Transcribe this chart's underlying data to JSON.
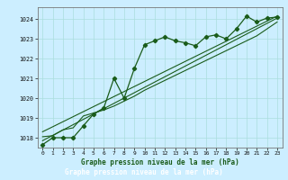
{
  "title": "Graphe pression niveau de la mer (hPa)",
  "bg_color": "#cceeff",
  "grid_color": "#aadddd",
  "line_color": "#1a5c1a",
  "xlim": [
    -0.5,
    23.5
  ],
  "ylim": [
    1017.5,
    1024.6
  ],
  "xticks": [
    0,
    1,
    2,
    3,
    4,
    5,
    6,
    7,
    8,
    9,
    10,
    11,
    12,
    13,
    14,
    15,
    16,
    17,
    18,
    19,
    20,
    21,
    22,
    23
  ],
  "yticks": [
    1018,
    1019,
    1020,
    1021,
    1022,
    1023,
    1024
  ],
  "main_x": [
    0,
    1,
    2,
    3,
    4,
    5,
    6,
    7,
    8,
    9,
    10,
    11,
    12,
    13,
    14,
    15,
    16,
    17,
    18,
    19,
    20,
    21,
    22,
    23
  ],
  "main_y": [
    1017.65,
    1018.0,
    1018.0,
    1018.0,
    1018.6,
    1019.2,
    1019.5,
    1021.0,
    1020.0,
    1021.5,
    1022.7,
    1022.9,
    1023.1,
    1022.9,
    1022.8,
    1022.65,
    1023.1,
    1023.2,
    1023.0,
    1023.5,
    1024.15,
    1023.85,
    1024.05,
    1024.1
  ],
  "line2_x": [
    0,
    23
  ],
  "line2_y": [
    1017.85,
    1024.05
  ],
  "line3_x": [
    0,
    23
  ],
  "line3_y": [
    1018.3,
    1024.15
  ],
  "line4_x": [
    0,
    1,
    2,
    3,
    4,
    5,
    6,
    7,
    8,
    9,
    10,
    11,
    12,
    13,
    14,
    15,
    16,
    17,
    18,
    19,
    20,
    21,
    22,
    23
  ],
  "line4_y": [
    1018.05,
    1018.1,
    1018.4,
    1018.5,
    1019.1,
    1019.25,
    1019.4,
    1019.6,
    1019.85,
    1020.1,
    1020.4,
    1020.65,
    1020.9,
    1021.15,
    1021.4,
    1021.65,
    1021.9,
    1022.15,
    1022.4,
    1022.65,
    1022.9,
    1023.15,
    1023.5,
    1023.85
  ]
}
